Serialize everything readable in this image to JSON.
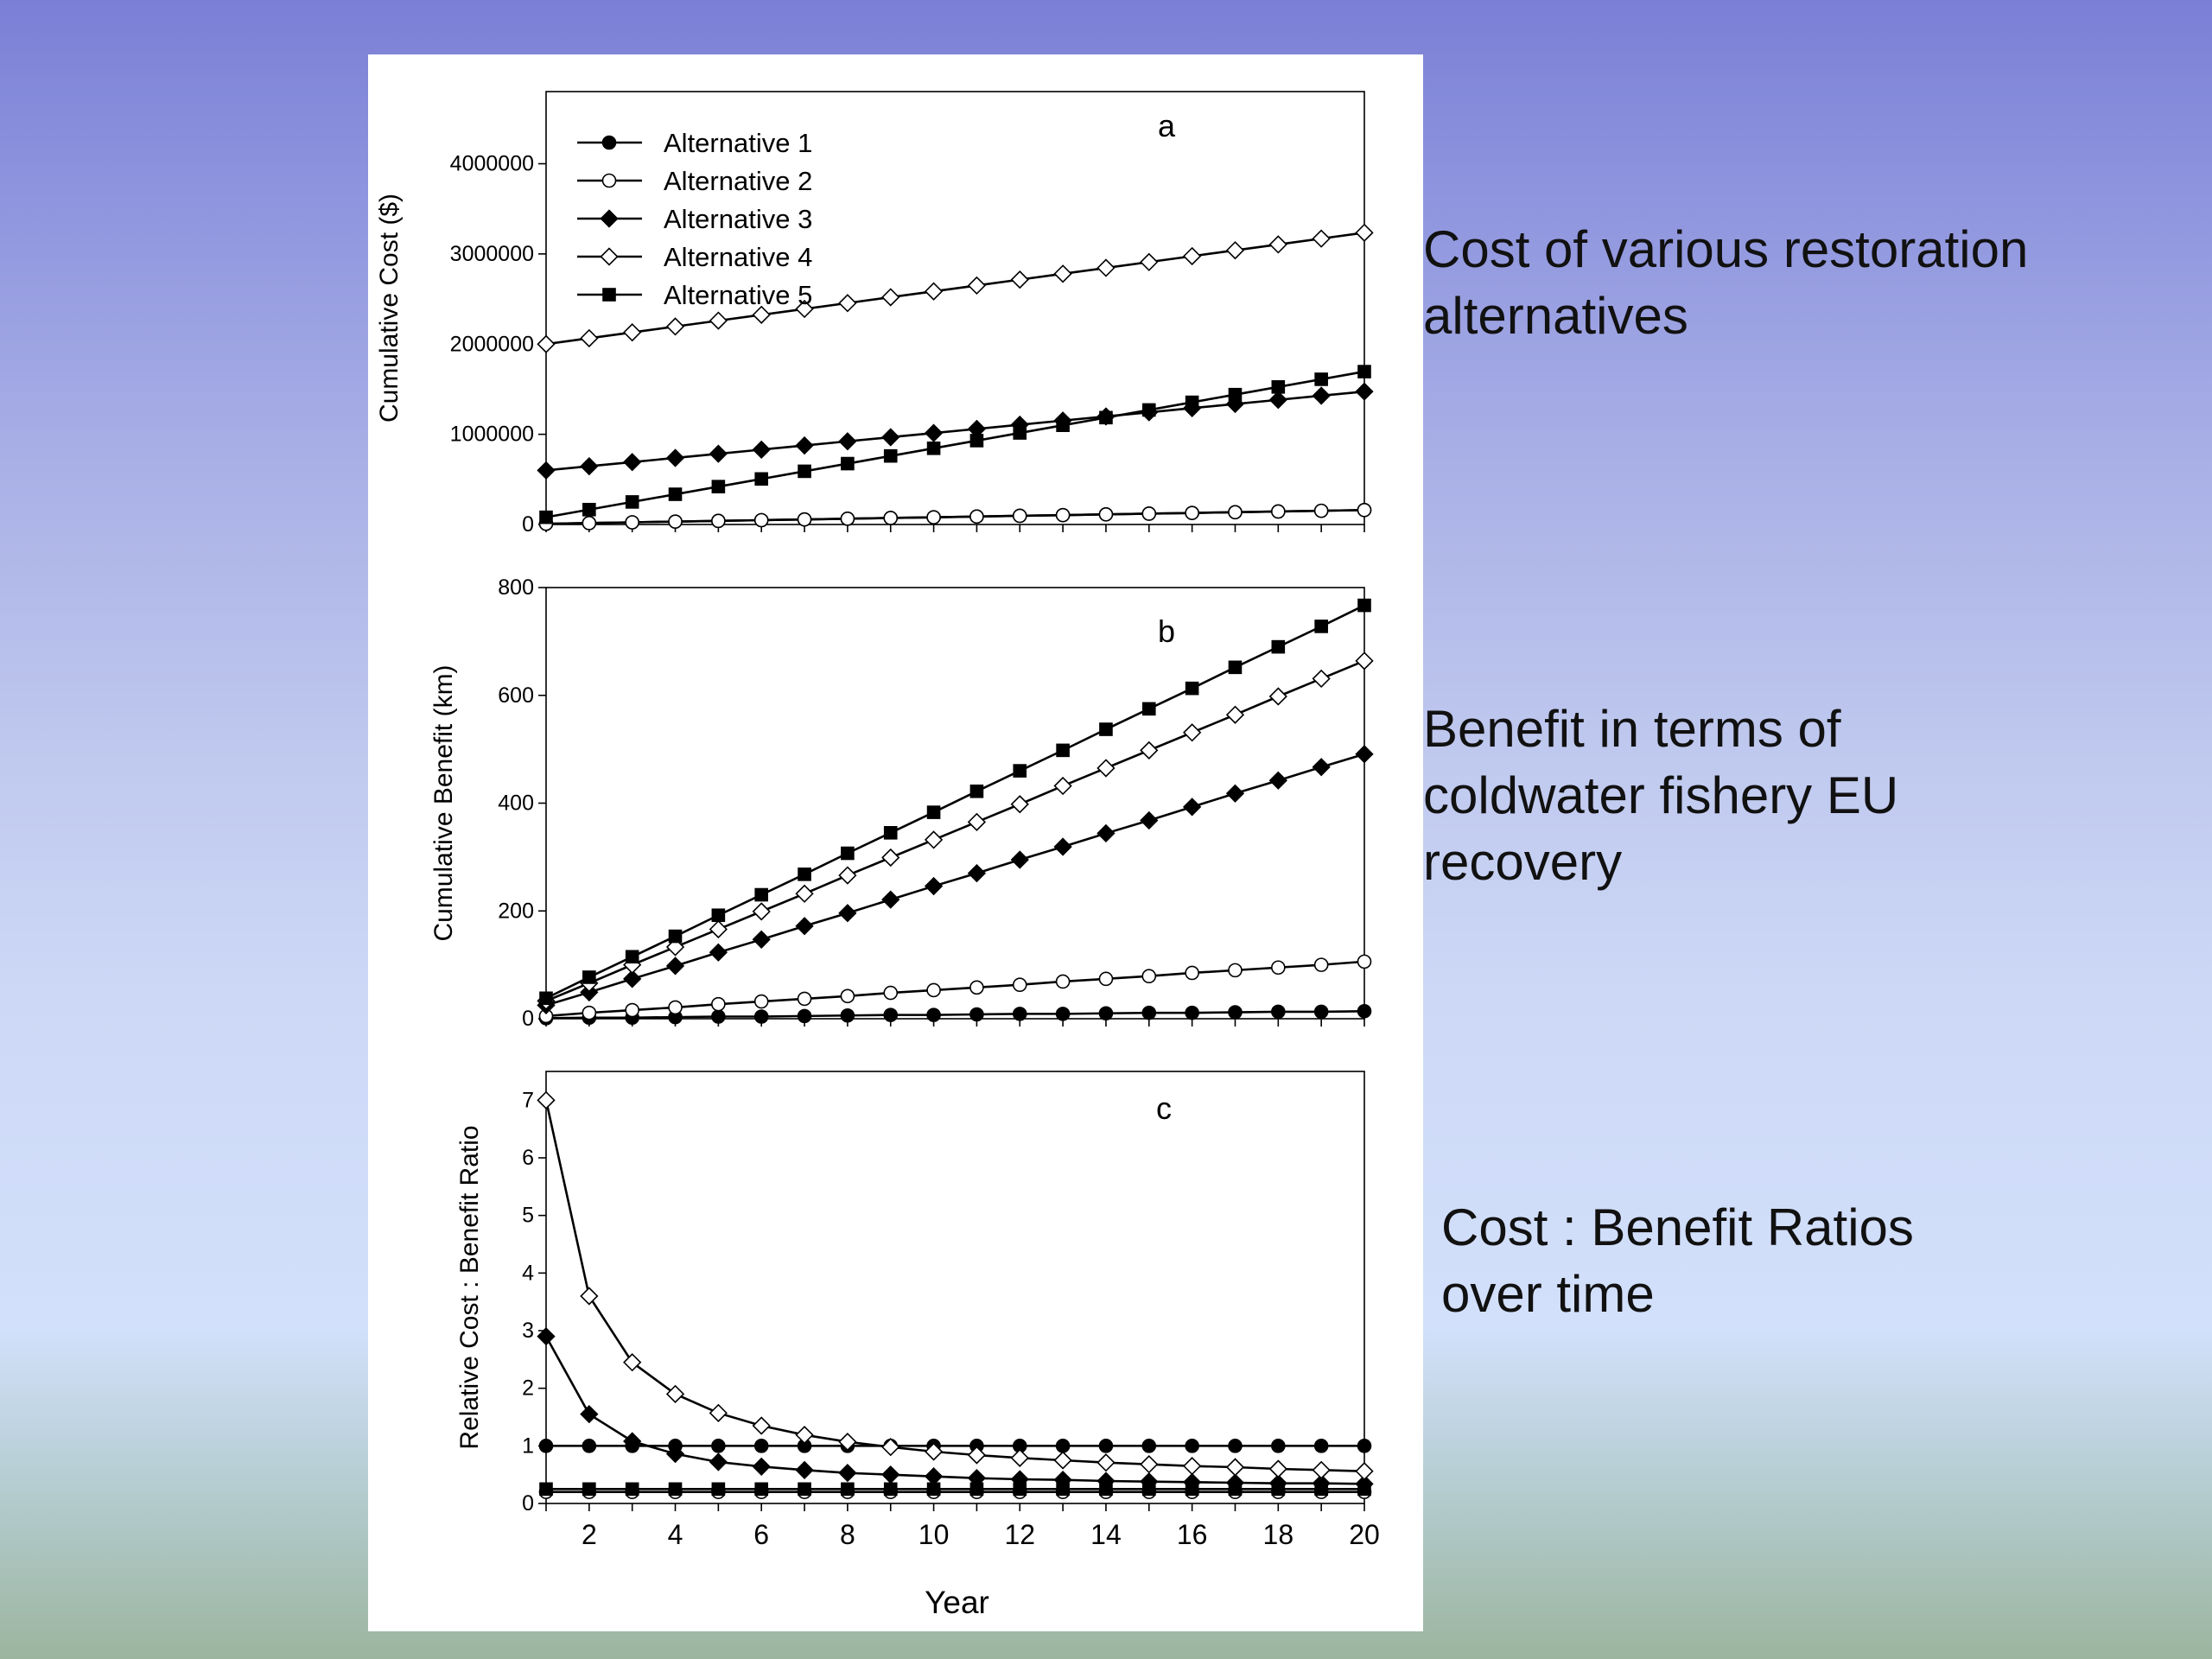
{
  "captions": {
    "cost": "Cost of various restoration\nalternatives",
    "benefit": "Benefit in terms of\ncoldwater fishery EU\nrecovery",
    "ratio": "Cost : Benefit Ratios\nover time"
  },
  "chart_data": [
    {
      "type": "line",
      "panel_label": "a",
      "ylabel": "Cumulative Cost ($)",
      "xlabel": "",
      "x": [
        1,
        2,
        3,
        4,
        5,
        6,
        7,
        8,
        9,
        10,
        11,
        12,
        13,
        14,
        15,
        16,
        17,
        18,
        19,
        20
      ],
      "xlim": [
        1,
        20
      ],
      "ylim": [
        0,
        4800000
      ],
      "yticks": [
        0,
        1000000,
        2000000,
        3000000,
        4000000
      ],
      "ytick_labels": [
        "0",
        "1000000",
        "2000000",
        "3000000",
        "4000000"
      ],
      "legend_position": "top-left",
      "series": [
        {
          "name": "Alternative 1",
          "marker": "filled-circle",
          "values": [
            8000,
            16000,
            24000,
            32000,
            40000,
            48000,
            56000,
            64000,
            72000,
            80000,
            88000,
            96000,
            104000,
            112000,
            120000,
            128000,
            136000,
            144000,
            152000,
            160000
          ]
        },
        {
          "name": "Alternative 2",
          "marker": "open-circle",
          "values": [
            8000,
            16000,
            24000,
            32000,
            40000,
            48000,
            56000,
            64000,
            72000,
            80000,
            88000,
            96000,
            104000,
            112000,
            120000,
            128000,
            136000,
            144000,
            152000,
            160000
          ]
        },
        {
          "name": "Alternative 3",
          "marker": "filled-diamond",
          "values": [
            600000,
            646000,
            692000,
            738000,
            784000,
            830000,
            876000,
            922000,
            968000,
            1014000,
            1060000,
            1106000,
            1152000,
            1198000,
            1244000,
            1290000,
            1336000,
            1382000,
            1428000,
            1474000
          ]
        },
        {
          "name": "Alternative 4",
          "marker": "open-diamond",
          "values": [
            2000000,
            2065000,
            2130000,
            2195000,
            2260000,
            2325000,
            2390000,
            2455000,
            2520000,
            2585000,
            2650000,
            2715000,
            2780000,
            2845000,
            2910000,
            2975000,
            3040000,
            3105000,
            3170000,
            3235000
          ]
        },
        {
          "name": "Alternative 5",
          "marker": "filled-square",
          "values": [
            80000,
            165000,
            250000,
            335000,
            420000,
            505000,
            590000,
            675000,
            760000,
            845000,
            930000,
            1015000,
            1100000,
            1185000,
            1270000,
            1355000,
            1440000,
            1525000,
            1610000,
            1695000
          ]
        }
      ]
    },
    {
      "type": "line",
      "panel_label": "b",
      "ylabel": "Cumulative Benefit (km)",
      "xlabel": "",
      "x": [
        1,
        2,
        3,
        4,
        5,
        6,
        7,
        8,
        9,
        10,
        11,
        12,
        13,
        14,
        15,
        16,
        17,
        18,
        19,
        20
      ],
      "xlim": [
        1,
        20
      ],
      "ylim": [
        0,
        800
      ],
      "yticks": [
        0,
        200,
        400,
        600,
        800
      ],
      "ytick_labels": [
        "0",
        "200",
        "400",
        "600",
        "800"
      ],
      "series": [
        {
          "name": "Alternative 1",
          "marker": "filled-circle",
          "values": [
            1,
            2,
            2,
            3,
            4,
            4,
            5,
            6,
            7,
            7,
            8,
            9,
            9,
            10,
            11,
            11,
            12,
            13,
            13,
            14
          ]
        },
        {
          "name": "Alternative 2",
          "marker": "open-circle",
          "values": [
            5,
            11,
            16,
            21,
            27,
            32,
            37,
            42,
            48,
            53,
            58,
            63,
            69,
            74,
            79,
            85,
            90,
            95,
            100,
            106
          ]
        },
        {
          "name": "Alternative 3",
          "marker": "filled-diamond",
          "values": [
            25,
            49,
            74,
            98,
            123,
            147,
            172,
            196,
            221,
            246,
            270,
            295,
            319,
            344,
            368,
            393,
            418,
            442,
            467,
            491
          ]
        },
        {
          "name": "Alternative 4",
          "marker": "open-diamond",
          "values": [
            33,
            66,
            100,
            133,
            166,
            199,
            232,
            266,
            299,
            332,
            365,
            398,
            432,
            465,
            498,
            531,
            564,
            598,
            631,
            664
          ]
        },
        {
          "name": "Alternative 5",
          "marker": "filled-square",
          "values": [
            38,
            77,
            115,
            153,
            192,
            230,
            268,
            307,
            345,
            383,
            422,
            460,
            498,
            537,
            575,
            613,
            652,
            690,
            728,
            767
          ]
        }
      ]
    },
    {
      "type": "line",
      "panel_label": "c",
      "ylabel": "Relative Cost : Benefit Ratio",
      "xlabel": "Year",
      "x": [
        1,
        2,
        3,
        4,
        5,
        6,
        7,
        8,
        9,
        10,
        11,
        12,
        13,
        14,
        15,
        16,
        17,
        18,
        19,
        20
      ],
      "xlim": [
        1,
        20
      ],
      "xticks": [
        2,
        4,
        6,
        8,
        10,
        12,
        14,
        16,
        18,
        20
      ],
      "xtick_labels": [
        "2",
        "4",
        "6",
        "8",
        "10",
        "12",
        "14",
        "16",
        "18",
        "20"
      ],
      "ylim": [
        0,
        7.5
      ],
      "yticks": [
        0,
        1,
        2,
        3,
        4,
        5,
        6,
        7
      ],
      "ytick_labels": [
        "0",
        "1",
        "2",
        "3",
        "4",
        "5",
        "6",
        "7"
      ],
      "series": [
        {
          "name": "Alternative 1",
          "marker": "filled-circle",
          "values": [
            1,
            1,
            1,
            1,
            1,
            1,
            1,
            1,
            1,
            1,
            1,
            1,
            1,
            1,
            1,
            1,
            1,
            1,
            1,
            1
          ]
        },
        {
          "name": "Alternative 2",
          "marker": "open-circle",
          "values": [
            0.2,
            0.2,
            0.2,
            0.2,
            0.2,
            0.2,
            0.2,
            0.2,
            0.2,
            0.2,
            0.2,
            0.2,
            0.2,
            0.2,
            0.2,
            0.2,
            0.2,
            0.2,
            0.2,
            0.2
          ]
        },
        {
          "name": "Alternative 3",
          "marker": "filled-diamond",
          "values": [
            2.9,
            1.55,
            1.08,
            0.86,
            0.72,
            0.64,
            0.58,
            0.53,
            0.5,
            0.47,
            0.44,
            0.42,
            0.41,
            0.39,
            0.38,
            0.37,
            0.36,
            0.35,
            0.35,
            0.34
          ]
        },
        {
          "name": "Alternative 4",
          "marker": "open-diamond",
          "values": [
            7.0,
            3.6,
            2.45,
            1.9,
            1.57,
            1.35,
            1.19,
            1.07,
            0.98,
            0.9,
            0.84,
            0.79,
            0.75,
            0.71,
            0.68,
            0.65,
            0.63,
            0.6,
            0.58,
            0.56
          ]
        },
        {
          "name": "Alternative 5",
          "marker": "filled-square",
          "values": [
            0.25,
            0.25,
            0.25,
            0.25,
            0.25,
            0.25,
            0.25,
            0.25,
            0.25,
            0.25,
            0.25,
            0.25,
            0.25,
            0.25,
            0.25,
            0.25,
            0.25,
            0.25,
            0.25,
            0.25
          ]
        }
      ]
    }
  ]
}
